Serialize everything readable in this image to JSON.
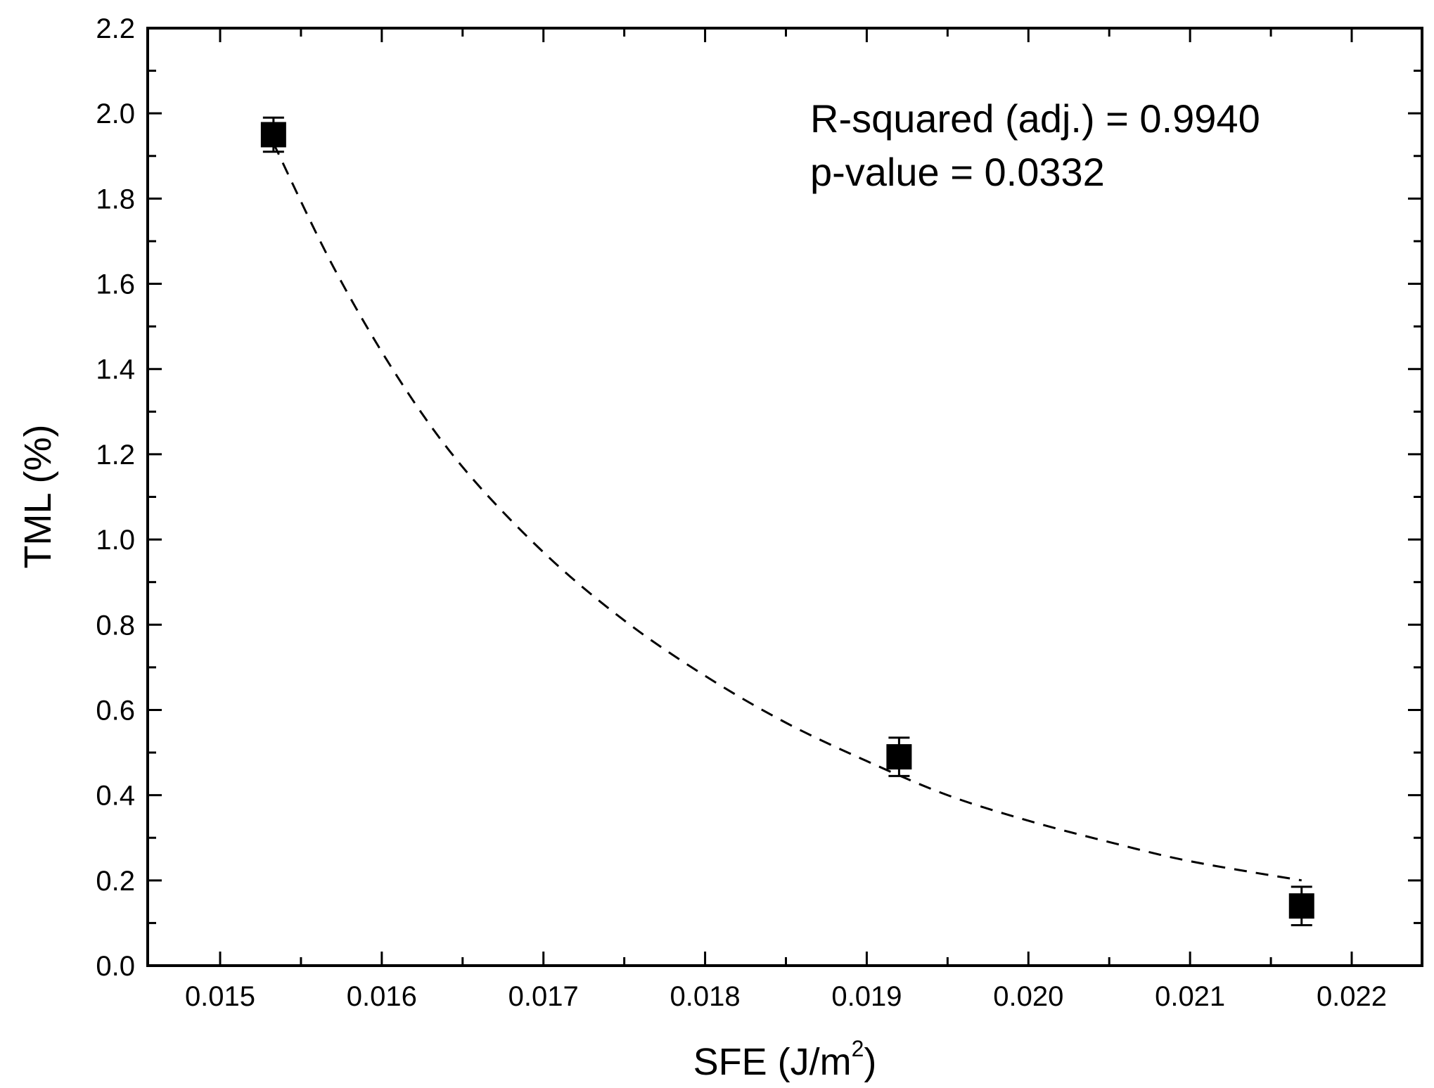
{
  "chart_data": {
    "type": "scatter",
    "xlabel_main": "SFE (J/m",
    "xlabel_sup": "2",
    "xlabel_end": ")",
    "ylabel": "TML (%)",
    "xlim": [
      0.0145,
      0.0225
    ],
    "ylim": [
      0.0,
      2.2
    ],
    "x_ticks": [
      0.015,
      0.016,
      0.017,
      0.018,
      0.019,
      0.02,
      0.021,
      0.022
    ],
    "x_tick_labels": [
      "0.015",
      "0.016",
      "0.017",
      "0.018",
      "0.019",
      "0.020",
      "0.021",
      "0.022"
    ],
    "y_ticks": [
      0.0,
      0.2,
      0.4,
      0.6,
      0.8,
      1.0,
      1.2,
      1.4,
      1.6,
      1.8,
      2.0,
      2.2
    ],
    "y_tick_labels": [
      "0.0",
      "0.2",
      "0.4",
      "0.6",
      "0.8",
      "1.0",
      "1.2",
      "1.4",
      "1.6",
      "1.8",
      "2.0",
      "2.2"
    ],
    "points": [
      {
        "x": 0.01533,
        "y": 1.95,
        "err": 0.04
      },
      {
        "x": 0.0192,
        "y": 0.49,
        "err": 0.045
      },
      {
        "x": 0.02169,
        "y": 0.14,
        "err": 0.045
      }
    ],
    "fit_curve": {
      "style": "dashed",
      "x": [
        0.01533,
        0.0157,
        0.0161,
        0.0165,
        0.017,
        0.0175,
        0.018,
        0.0185,
        0.019,
        0.0195,
        0.02,
        0.0205,
        0.021,
        0.02169
      ],
      "y": [
        1.93,
        1.64,
        1.38,
        1.17,
        0.97,
        0.81,
        0.68,
        0.57,
        0.48,
        0.4,
        0.34,
        0.29,
        0.245,
        0.2
      ]
    },
    "annotations": [
      "R-squared (adj.) = 0.9940",
      "p-value = 0.0332"
    ],
    "grid": false
  }
}
